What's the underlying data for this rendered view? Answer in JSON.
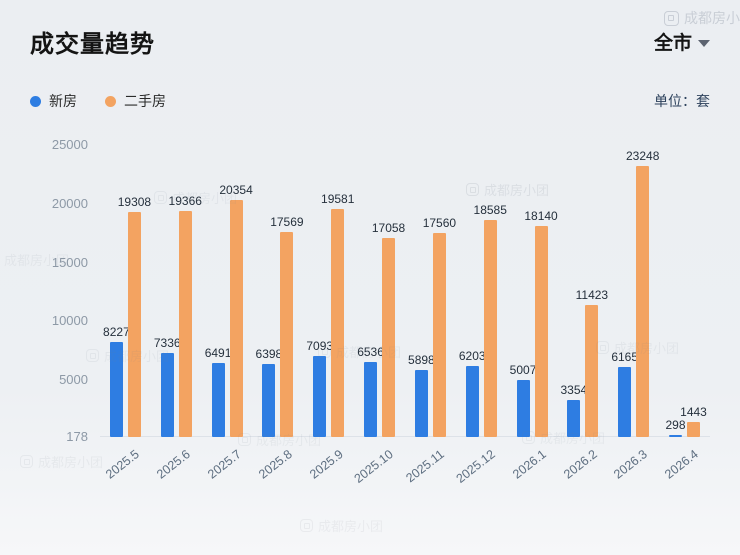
{
  "header": {
    "title": "成交量趋势",
    "region": "全市",
    "unit": "单位：套"
  },
  "legend": [
    {
      "label": "新房",
      "color": "#2e7de2"
    },
    {
      "label": "二手房",
      "color": "#f3a361"
    }
  ],
  "watermark": {
    "text": "成都房小团"
  },
  "chart_data": {
    "type": "bar",
    "title": "成交量趋势",
    "categories": [
      "2025.5",
      "2025.6",
      "2025.7",
      "2025.8",
      "2025.9",
      "2025.10",
      "2025.11",
      "2025.12",
      "2026.1",
      "2026.2",
      "2026.3",
      "2026.4"
    ],
    "series": [
      {
        "name": "新房",
        "color": "#2e7de2",
        "values": [
          8227,
          7336,
          6491,
          6398,
          7093,
          6536,
          5898,
          6203,
          5007,
          3354,
          6165,
          298
        ]
      },
      {
        "name": "二手房",
        "color": "#f3a361",
        "values": [
          19308,
          19366,
          20354,
          17569,
          19581,
          17058,
          17560,
          18585,
          18140,
          11423,
          23248,
          1443
        ]
      }
    ],
    "yticks": [
      178,
      5000,
      10000,
      15000,
      20000,
      25000
    ],
    "ylim": [
      178,
      25000
    ],
    "grid": false,
    "legend_position": "top-left",
    "unit": "套"
  }
}
